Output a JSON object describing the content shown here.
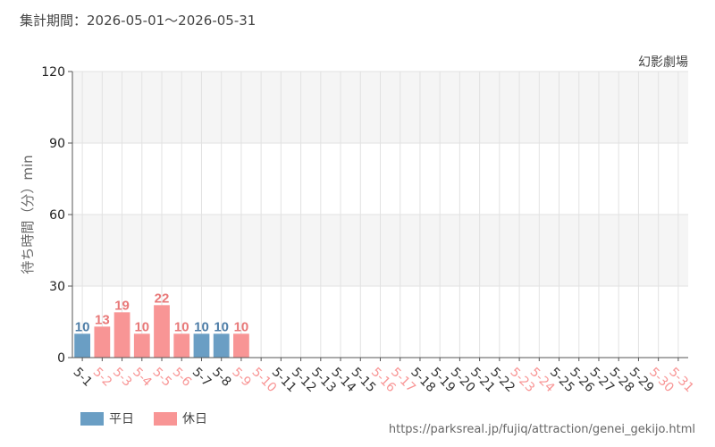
{
  "header": {
    "period": "集計期間：2026-05-01〜2026-05-31"
  },
  "footer": {
    "url": "https://parksreal.jp/fujiq/attraction/genei_gekijo.html"
  },
  "legend": {
    "weekday": "平日",
    "holiday": "休日"
  },
  "colors": {
    "weekday": "#6a9ec4",
    "holiday": "#f89595",
    "weekday_text": "#4e7ea8",
    "holiday_text": "#e87878",
    "band": "#f5f5f5",
    "grid": "#e2e2e2"
  },
  "chart_data": {
    "type": "bar",
    "attraction": "幻影劇場",
    "ylabel": "待ち時間（分）min",
    "ylim": [
      0,
      120
    ],
    "yticks": [
      0,
      30,
      60,
      90,
      120
    ],
    "categories": [
      "5-1",
      "5-2",
      "5-3",
      "5-4",
      "5-5",
      "5-6",
      "5-7",
      "5-8",
      "5-9",
      "5-10",
      "5-11",
      "5-12",
      "5-13",
      "5-14",
      "5-15",
      "5-16",
      "5-17",
      "5-18",
      "5-19",
      "5-20",
      "5-21",
      "5-22",
      "5-23",
      "5-24",
      "5-25",
      "5-26",
      "5-27",
      "5-28",
      "5-29",
      "5-30",
      "5-31"
    ],
    "day_type": [
      "weekday",
      "holiday",
      "holiday",
      "holiday",
      "holiday",
      "holiday",
      "weekday",
      "weekday",
      "holiday",
      "holiday",
      "weekday",
      "weekday",
      "weekday",
      "weekday",
      "weekday",
      "holiday",
      "holiday",
      "weekday",
      "weekday",
      "weekday",
      "weekday",
      "weekday",
      "holiday",
      "holiday",
      "weekday",
      "weekday",
      "weekday",
      "weekday",
      "weekday",
      "holiday",
      "holiday"
    ],
    "values": [
      10,
      13,
      19,
      10,
      22,
      10,
      10,
      10,
      10,
      null,
      null,
      null,
      null,
      null,
      null,
      null,
      null,
      null,
      null,
      null,
      null,
      null,
      null,
      null,
      null,
      null,
      null,
      null,
      null,
      null,
      null
    ],
    "grid": true
  }
}
